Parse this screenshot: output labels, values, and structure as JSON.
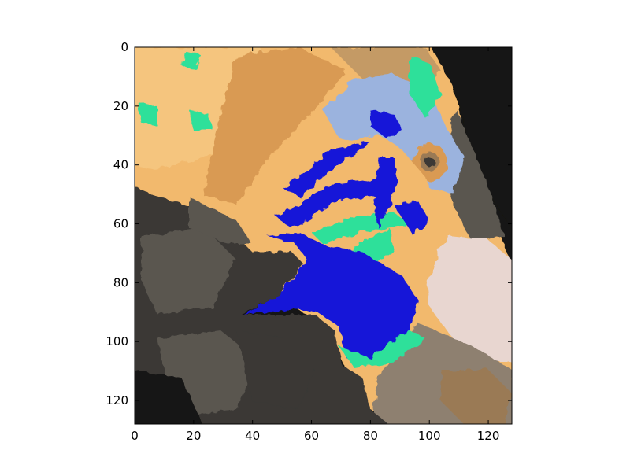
{
  "figure": {
    "description": "Color-quantized image of a parrot face shown with pixel-index axes",
    "palette": {
      "background": "#ffffff",
      "axis": "#000000",
      "near_black": "#141412",
      "dark_gray": "#3a3835",
      "mid_gray": "#5a5650",
      "warm_gray": "#8e8070",
      "brown": "#9a7a55",
      "tan": "#c49a65",
      "orange": "#d99a52",
      "light_orange": "#f2b96d",
      "peach": "#f5c57e",
      "pale_pink": "#e8d6d0",
      "light_blue": "#9bb3de",
      "blue": "#1313d8",
      "green": "#2ee09a"
    }
  },
  "chart_data": {
    "type": "image",
    "title": "",
    "xlabel": "",
    "ylabel": "",
    "xlim": [
      0,
      128
    ],
    "ylim": [
      128,
      0
    ],
    "y_inverted": true,
    "x_ticks": [
      0,
      20,
      40,
      60,
      80,
      100,
      120
    ],
    "y_ticks": [
      0,
      20,
      40,
      60,
      80,
      100,
      120
    ],
    "x_tick_labels": [
      "0",
      "20",
      "40",
      "60",
      "80",
      "100",
      "120"
    ],
    "y_tick_labels": [
      "0",
      "20",
      "40",
      "60",
      "80",
      "100",
      "120"
    ],
    "grid": false,
    "legend": "none"
  }
}
